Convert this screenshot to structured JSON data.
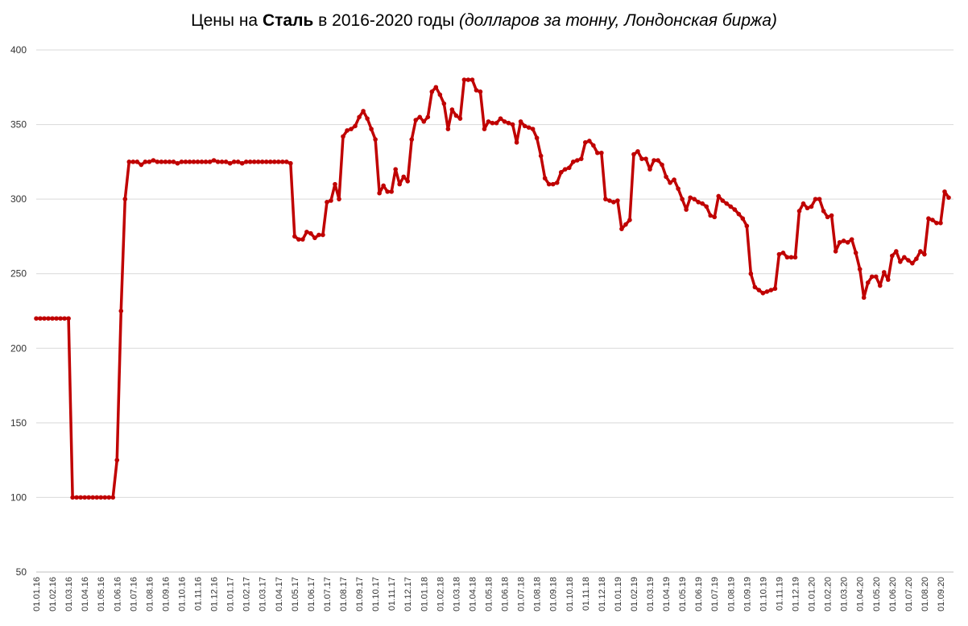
{
  "chart_data": {
    "type": "line",
    "title": {
      "prefix": "Цены на",
      "bold": "Сталь",
      "middle": "в 2016-2020 годы",
      "italic": "(долларов за тонну, Лондонская биржа)"
    },
    "ylim": [
      50,
      400
    ],
    "yticks": [
      50,
      100,
      150,
      200,
      250,
      300,
      350,
      400
    ],
    "grid": true,
    "categories": [
      "01.01.16",
      null,
      null,
      null,
      "01.02.16",
      null,
      null,
      null,
      "01.03.16",
      null,
      null,
      null,
      "01.04.16",
      null,
      null,
      null,
      "01.05.16",
      null,
      null,
      null,
      "01.06.16",
      null,
      null,
      null,
      "01.07.16",
      null,
      null,
      null,
      "01.08.16",
      null,
      null,
      null,
      "01.09.16",
      null,
      null,
      null,
      "01.10.16",
      null,
      null,
      null,
      "01.11.16",
      null,
      null,
      null,
      "01.12.16",
      null,
      null,
      null,
      "01.01.17",
      null,
      null,
      null,
      "01.02.17",
      null,
      null,
      null,
      "01.03.17",
      null,
      null,
      null,
      "01.04.17",
      null,
      null,
      null,
      "01.05.17",
      null,
      null,
      null,
      "01.06.17",
      null,
      null,
      null,
      "01.07.17",
      null,
      null,
      null,
      "01.08.17",
      null,
      null,
      null,
      "01.09.17",
      null,
      null,
      null,
      "01.10.17",
      null,
      null,
      null,
      "01.11.17",
      null,
      null,
      null,
      "01.12.17",
      null,
      null,
      null,
      "01.01.18",
      null,
      null,
      null,
      "01.02.18",
      null,
      null,
      null,
      "01.03.18",
      null,
      null,
      null,
      "01.04.18",
      null,
      null,
      null,
      "01.05.18",
      null,
      null,
      null,
      "01.06.18",
      null,
      null,
      null,
      "01.07.18",
      null,
      null,
      null,
      "01.08.18",
      null,
      null,
      null,
      "01.09.18",
      null,
      null,
      null,
      "01.10.18",
      null,
      null,
      null,
      "01.11.18",
      null,
      null,
      null,
      "01.12.18",
      null,
      null,
      null,
      "01.01.19",
      null,
      null,
      null,
      "01.02.19",
      null,
      null,
      null,
      "01.03.19",
      null,
      null,
      null,
      "01.04.19",
      null,
      null,
      null,
      "01.05.19",
      null,
      null,
      null,
      "01.06.19",
      null,
      null,
      null,
      "01.07.19",
      null,
      null,
      null,
      "01.08.19",
      null,
      null,
      null,
      "01.09.19",
      null,
      null,
      null,
      "01.10.19",
      null,
      null,
      null,
      "01.11.19",
      null,
      null,
      null,
      "01.12.19",
      null,
      null,
      null,
      "01.01.20",
      null,
      null,
      null,
      "01.02.20",
      null,
      null,
      null,
      "01.03.20",
      null,
      null,
      null,
      "01.04.20",
      null,
      null,
      null,
      "01.05.20",
      null,
      null,
      null,
      "01.06.20",
      null,
      null,
      null,
      "01.07.20",
      null,
      null,
      null,
      "01.08.20",
      null,
      null,
      null,
      "01.09.20",
      null,
      null
    ],
    "series": [
      {
        "color": "#c00000",
        "values": [
          220,
          220,
          220,
          220,
          220,
          220,
          220,
          220,
          220,
          100,
          100,
          100,
          100,
          100,
          100,
          100,
          100,
          100,
          100,
          100,
          125,
          225,
          300,
          325,
          325,
          325,
          323,
          325,
          325,
          326,
          325,
          325,
          325,
          325,
          325,
          324,
          325,
          325,
          325,
          325,
          325,
          325,
          325,
          325,
          326,
          325,
          325,
          325,
          324,
          325,
          325,
          324,
          325,
          325,
          325,
          325,
          325,
          325,
          325,
          325,
          325,
          325,
          325,
          324,
          275,
          273,
          273,
          278,
          277,
          274,
          276,
          276,
          298,
          299,
          310,
          300,
          342,
          346,
          347,
          349,
          355,
          359,
          354,
          347,
          340,
          304,
          309,
          305,
          305,
          320,
          310,
          315,
          312,
          340,
          353,
          355,
          352,
          355,
          372,
          375,
          370,
          364,
          347,
          360,
          356,
          354,
          380,
          380,
          380,
          373,
          372,
          347,
          352,
          351,
          351,
          354,
          352,
          351,
          350,
          338,
          352,
          349,
          348,
          347,
          341,
          329,
          314,
          310,
          310,
          311,
          318,
          320,
          321,
          325,
          326,
          327,
          338,
          339,
          336,
          331,
          331,
          300,
          299,
          298,
          299,
          280,
          283,
          286,
          330,
          332,
          327,
          327,
          320,
          326,
          326,
          323,
          315,
          311,
          313,
          307,
          300,
          293,
          301,
          300,
          298,
          297,
          295,
          289,
          288,
          302,
          299,
          297,
          295,
          293,
          290,
          287,
          282,
          250,
          241,
          239,
          237,
          238,
          239,
          240,
          263,
          264,
          261,
          261,
          261,
          292,
          297,
          294,
          295,
          300,
          300,
          292,
          288,
          289,
          265,
          271,
          272,
          271,
          273,
          264,
          253,
          234,
          244,
          248,
          248,
          242,
          251,
          246,
          262,
          265,
          258,
          261,
          259,
          257,
          260,
          265,
          263,
          287,
          286,
          284,
          284,
          305,
          301
        ]
      }
    ]
  }
}
